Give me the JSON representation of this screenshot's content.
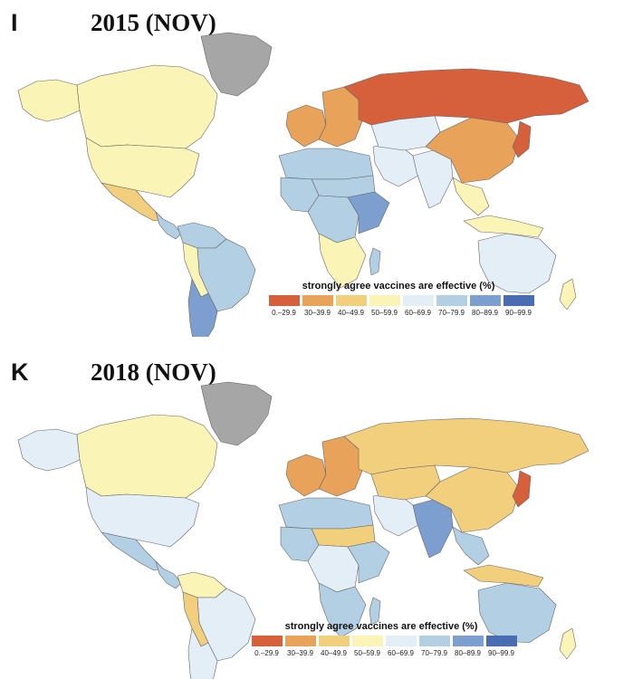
{
  "legend": {
    "title": "strongly agree vaccines are effective (%)",
    "bins": [
      {
        "label": "0.–29.9",
        "color": "#d6603b"
      },
      {
        "label": "30–39.9",
        "color": "#e8a25a"
      },
      {
        "label": "40–49.9",
        "color": "#f1cf7d"
      },
      {
        "label": "50–59.9",
        "color": "#faf4b6"
      },
      {
        "label": "60–69.9",
        "color": "#e3eef7"
      },
      {
        "label": "70–79.9",
        "color": "#b3cfe4"
      },
      {
        "label": "80–89.9",
        "color": "#7c9fd0"
      },
      {
        "label": "90–99.9",
        "color": "#4a6cb3"
      }
    ],
    "no_data_color": "#a6a6a6"
  },
  "panels": [
    {
      "letter": "I",
      "title": "2015 (NOV)",
      "regions": {
        "canada": 3,
        "alaska": 3,
        "usa": 3,
        "mexico": 2,
        "central_america": 5,
        "greenland": "na",
        "south_america_north": 5,
        "brazil": 5,
        "peru": 3,
        "argentina": 6,
        "europe_west": 1,
        "europe_east": 1,
        "russia": 0,
        "north_africa": 5,
        "sahel": 5,
        "west_africa": 5,
        "central_africa": 5,
        "east_africa": 6,
        "southern_africa": 3,
        "middle_east": 4,
        "central_asia": 4,
        "india": 4,
        "china": 1,
        "southeast_asia": 3,
        "japan": 0,
        "australia": 4,
        "new_zealand": 3,
        "madagascar": 5,
        "indonesia": 3
      }
    },
    {
      "letter": "K",
      "title": "2018 (NOV)",
      "regions": {
        "canada": 3,
        "alaska": 4,
        "usa": 4,
        "mexico": 5,
        "central_america": 5,
        "greenland": "na",
        "south_america_north": 3,
        "brazil": 4,
        "peru": 2,
        "argentina": 4,
        "europe_west": 1,
        "europe_east": 1,
        "russia": 2,
        "north_africa": 5,
        "sahel": 2,
        "west_africa": 5,
        "central_africa": 4,
        "east_africa": 5,
        "southern_africa": 5,
        "middle_east": 4,
        "central_asia": 2,
        "india": 6,
        "china": 2,
        "southeast_asia": 5,
        "japan": 0,
        "australia": 5,
        "new_zealand": 3,
        "madagascar": 5,
        "indonesia": 2
      }
    }
  ]
}
